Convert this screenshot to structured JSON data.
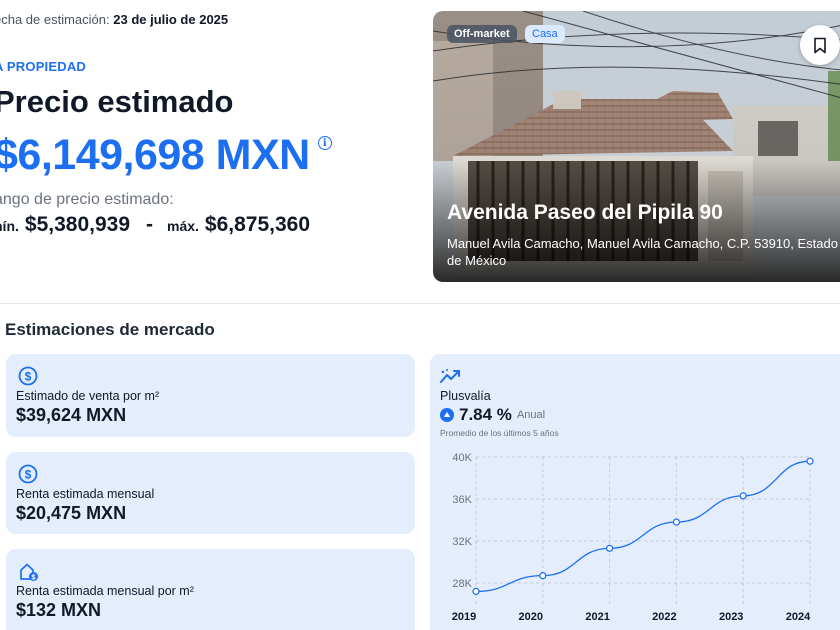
{
  "header": {
    "estimation_date_label": "echa de estimación:",
    "estimation_date_value": "23 de julio de 2025",
    "section_tag": "A PROPIEDAD",
    "price_title": "Precio estimado",
    "price_value": "$6,149,698 MXN",
    "info_icon": "info-icon",
    "range_label": "ango de precio estimado:",
    "min_label": "nín.",
    "min_value": "$5,380,939",
    "dash": "-",
    "max_label": "máx.",
    "max_value": "$6,875,360"
  },
  "photo": {
    "badge_offmarket": "Off-market",
    "badge_type": "Casa",
    "title": "Avenida Paseo del Pipila 90",
    "address": "Manuel Avila Camacho, Manuel Avila Camacho, C.P. 53910, Estado de México",
    "bookmark_icon": "bookmark-icon"
  },
  "market": {
    "title": "Estimaciones de mercado",
    "cards": [
      {
        "icon": "dollar-circle-icon",
        "label": "Estimado de venta por m²",
        "value": "$39,624 MXN"
      },
      {
        "icon": "dollar-circle-icon",
        "label": "Renta estimada mensual",
        "value": "$20,475 MXN"
      },
      {
        "icon": "house-dollar-icon",
        "label": "Renta estimada mensual por m²",
        "value": "$132 MXN"
      }
    ]
  },
  "plusvalia": {
    "icon": "trend-up-icon",
    "label": "Plusvalía",
    "value": "7.84 %",
    "period": "Anual",
    "note": "Promedio de los últimos 5 años"
  },
  "chart_data": {
    "type": "line",
    "x": [
      "2019",
      "2020",
      "2021",
      "2022",
      "2023",
      "2024"
    ],
    "values": [
      27200,
      28700,
      31300,
      33800,
      36300,
      39600
    ],
    "yticks": [
      "28K",
      "32K",
      "36K",
      "40K"
    ],
    "ytick_values": [
      28000,
      32000,
      36000,
      40000
    ],
    "ylim": [
      26000,
      40000
    ],
    "grid": true,
    "line_color": "#1d6ff2"
  },
  "colors": {
    "accent": "#1d6ff2",
    "card_bg": "#e3edfc"
  }
}
